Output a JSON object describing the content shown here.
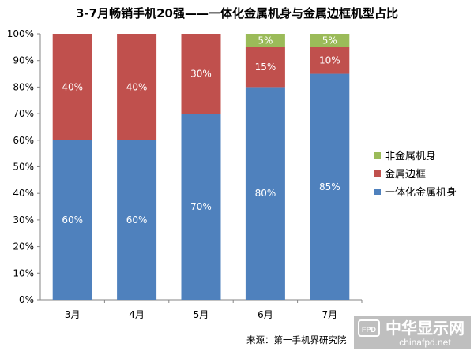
{
  "chart_data": {
    "type": "bar",
    "stacked": true,
    "title": "3-7月畅销手机20强——一体化金属机身与金属边框机型占比",
    "categories": [
      "3月",
      "4月",
      "5月",
      "6月",
      "7月"
    ],
    "series": [
      {
        "name": "一体化金属机身",
        "color": "#4F81BD",
        "values": [
          60,
          60,
          70,
          80,
          85
        ],
        "labels": [
          "60%",
          "60%",
          "70%",
          "80%",
          "85%"
        ]
      },
      {
        "name": "金属边框",
        "color": "#C0504D",
        "values": [
          40,
          40,
          30,
          15,
          10
        ],
        "labels": [
          "40%",
          "40%",
          "30%",
          "15%",
          "10%"
        ]
      },
      {
        "name": "非金属机身",
        "color": "#9BBB59",
        "values": [
          0,
          0,
          0,
          5,
          5
        ],
        "labels": [
          "",
          "",
          "",
          "5%",
          "5%"
        ]
      }
    ],
    "legend_order": [
      2,
      1,
      0
    ],
    "yticks": [
      "0%",
      "10%",
      "20%",
      "30%",
      "40%",
      "50%",
      "60%",
      "70%",
      "80%",
      "90%",
      "100%"
    ],
    "ylim": [
      0,
      100
    ],
    "grid": false,
    "legend_position": "right"
  },
  "source_text": "来源：第一手机界研究院",
  "watermark": {
    "badge": "FPD",
    "cn": "中华显示网",
    "en": "chinafpd.net"
  }
}
